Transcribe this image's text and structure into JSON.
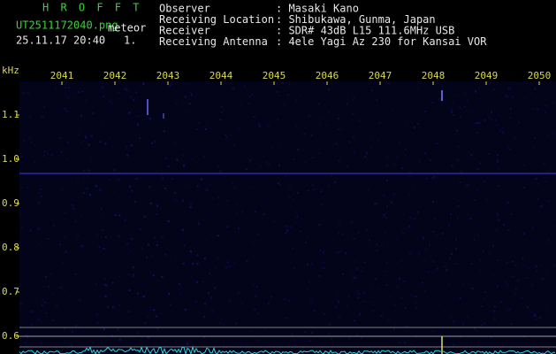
{
  "header": {
    "title": "H R O F F T",
    "file": "UT2511172040.png",
    "tag": "meteor",
    "datetime": "25.11.17 20:40",
    "counter": "1."
  },
  "info": [
    {
      "label": "Observer",
      "value": ": Masaki Kano"
    },
    {
      "label": "Receiving Location",
      "value": ": Shibukawa, Gunma, Japan"
    },
    {
      "label": "Receiver",
      "value": ": SDR# 43dB L15 111.6MHz USB"
    },
    {
      "label": "Receiving Antenna",
      "value": ": 4ele Yagi Az 230 for Kansai VOR"
    }
  ],
  "axis": {
    "unit": "kHz",
    "x_labels": [
      "2041",
      "2042",
      "2043",
      "2044",
      "2045",
      "2046",
      "2047",
      "2048",
      "2049",
      "2050"
    ],
    "y_labels": [
      "1.1",
      "1.0",
      "0.9",
      "0.8",
      "0.7",
      "0.6"
    ]
  }
}
